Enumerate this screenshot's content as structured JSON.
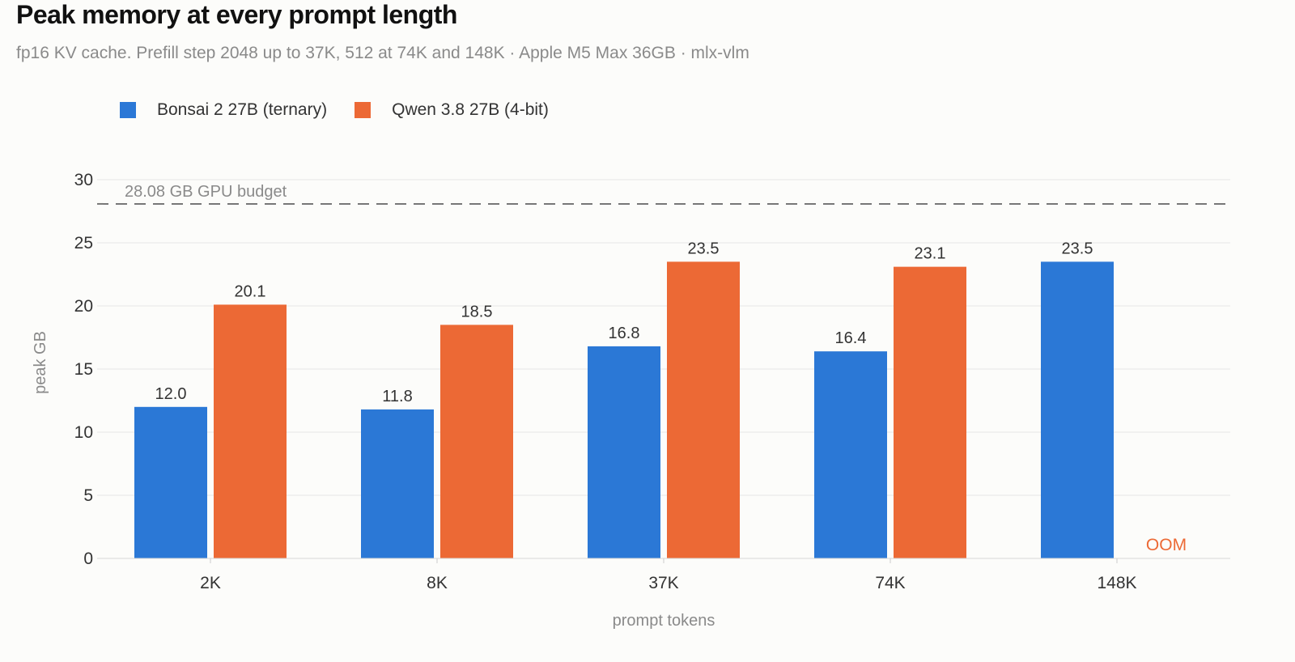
{
  "colors": {
    "bonsai": "#2b78d6",
    "qwen": "#ec6935",
    "grid": "#e6e6e6",
    "reference": "#777777",
    "oom": "#ec6935"
  },
  "chart_data": {
    "type": "bar",
    "title": "Peak memory at every prompt length",
    "subtitle": "fp16 KV cache. Prefill step 2048 up to 37K, 512 at 74K and 148K · Apple M5 Max 36GB · mlx-vlm",
    "xlabel": "prompt tokens",
    "ylabel": "peak GB",
    "ylim": [
      0,
      30
    ],
    "yticks": [
      0,
      5,
      10,
      15,
      20,
      25,
      30
    ],
    "grid": true,
    "legend_position": "top-left",
    "categories": [
      "2K",
      "8K",
      "37K",
      "74K",
      "148K"
    ],
    "series": [
      {
        "name": "Bonsai 2 27B (ternary)",
        "color_key": "bonsai",
        "values": [
          12.0,
          11.8,
          16.8,
          16.4,
          23.5
        ],
        "labels": [
          "12.0",
          "11.8",
          "16.8",
          "16.4",
          "23.5"
        ]
      },
      {
        "name": "Qwen 3.8 27B (4-bit)",
        "color_key": "qwen",
        "values": [
          20.1,
          18.5,
          23.5,
          23.1,
          null
        ],
        "labels": [
          "20.1",
          "18.5",
          "23.5",
          "23.1",
          "OOM"
        ]
      }
    ],
    "reference_line": {
      "value": 28.08,
      "label": "28.08 GB GPU budget"
    }
  }
}
